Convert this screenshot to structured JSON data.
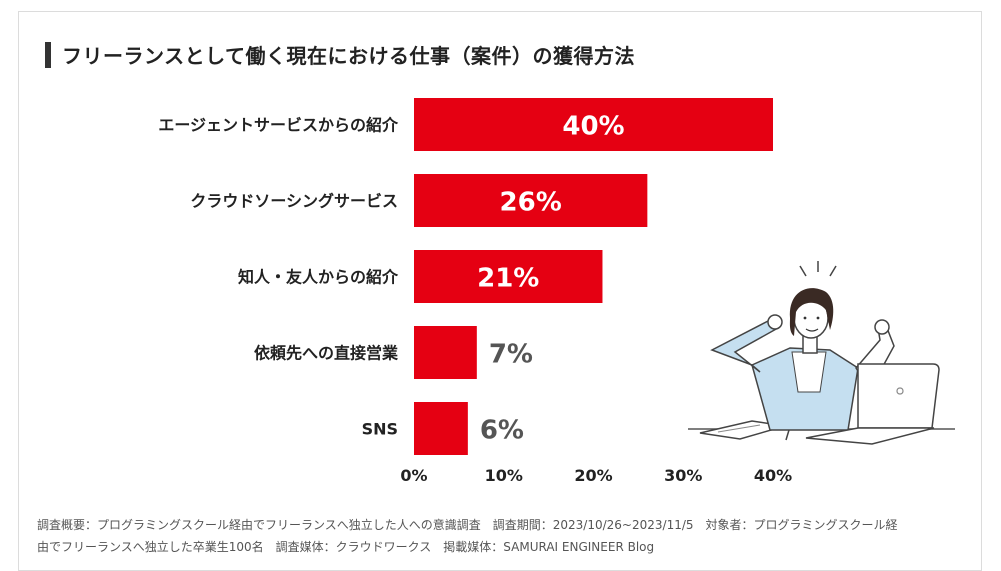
{
  "title": "フリーランスとして働く現在における仕事（案件）の獲得方法",
  "colors": {
    "bar": "#e50012",
    "label_inside": "#ffffff",
    "label_outside": "#555555",
    "text": "#222222"
  },
  "chart_data": {
    "type": "bar",
    "orientation": "horizontal",
    "title": "フリーランスとして働く現在における仕事（案件）の獲得方法",
    "categories": [
      "エージェントサービスからの紹介",
      "クラウドソーシングサービス",
      "知人・友人からの紹介",
      "依頼先への直接営業",
      "SNS"
    ],
    "values": [
      40,
      26,
      21,
      7,
      6
    ],
    "value_labels": [
      "40%",
      "26%",
      "21%",
      "7%",
      "6%"
    ],
    "unit": "%",
    "xlim": [
      0,
      40
    ],
    "x_ticks": [
      "0%",
      "10%",
      "20%",
      "30%",
      "40%"
    ],
    "grid": false
  },
  "illustration": {
    "name": "woman-stretching-at-laptop-illustration"
  },
  "footnote": {
    "line1": "調査概要：プログラミングスクール経由でフリーランスへ独立した人への意識調査　調査期間：2023/10/26~2023/11/5　対象者：プログラミングスクール経",
    "line2": "由でフリーランスへ独立した卒業生100名　調査媒体：クラウドワークス　掲載媒体：SAMURAI ENGINEER Blog"
  }
}
